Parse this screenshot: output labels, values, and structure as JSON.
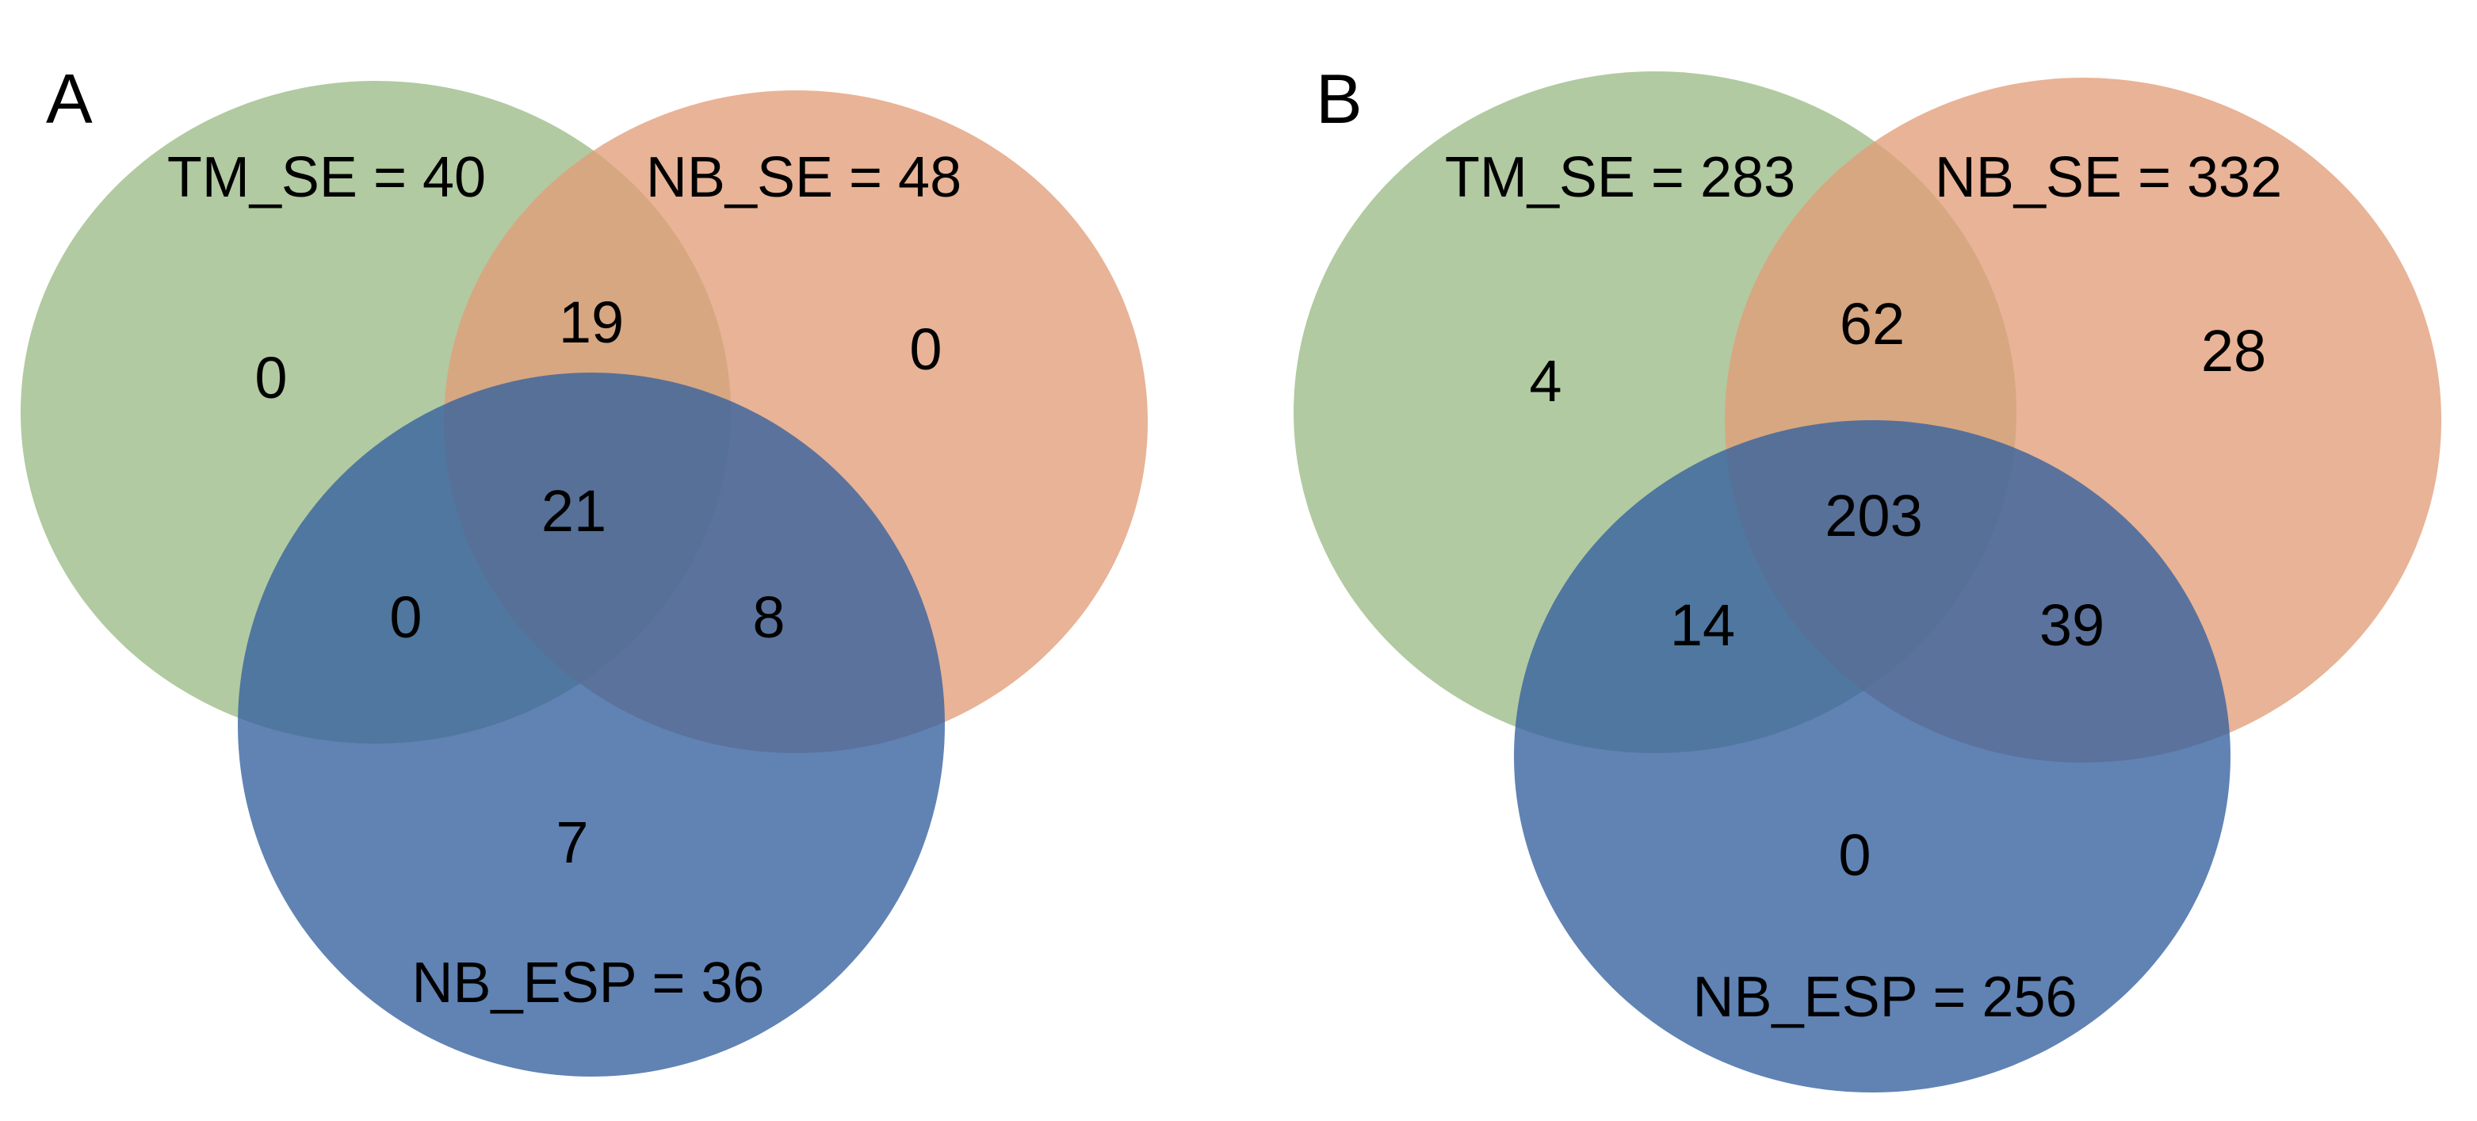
{
  "colors": {
    "set_a": "#9bbb87",
    "set_b": "#e29e79",
    "set_c": "#33609f"
  },
  "panels": [
    {
      "letter": "A",
      "sets": {
        "a": "TM_SE = 40",
        "b": "NB_SE = 48",
        "c": "NB_ESP = 36"
      },
      "regions": {
        "a_only": "0",
        "b_only": "0",
        "c_only": "7",
        "ab": "19",
        "ac": "0",
        "bc": "8",
        "abc": "21"
      }
    },
    {
      "letter": "B",
      "sets": {
        "a": "TM_SE = 283",
        "b": "NB_SE = 332",
        "c": "NB_ESP = 256"
      },
      "regions": {
        "a_only": "4",
        "b_only": "28",
        "c_only": "0",
        "ab": "62",
        "ac": "14",
        "bc": "39",
        "abc": "203"
      }
    }
  ]
}
